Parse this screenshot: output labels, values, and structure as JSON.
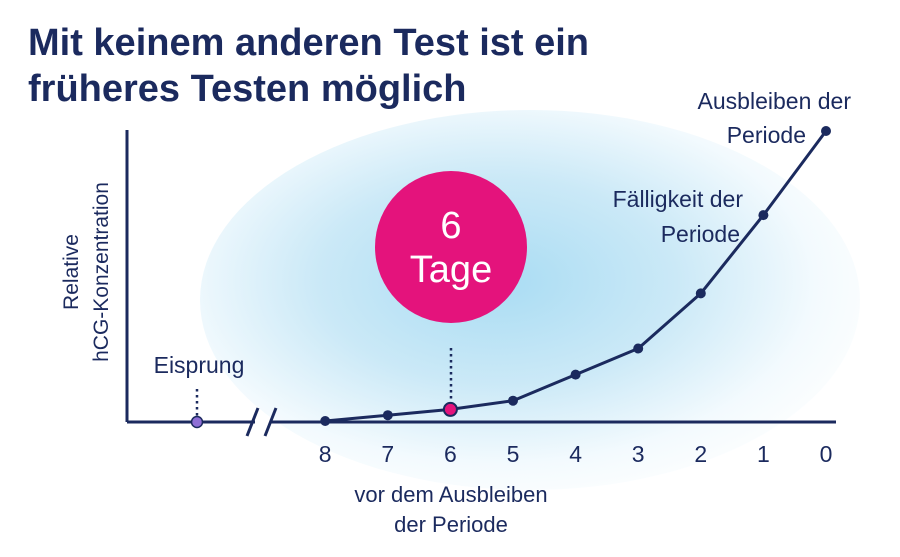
{
  "title_lines": [
    "Mit keinem anderen Test ist ein",
    "früheres Testen möglich"
  ],
  "chart_data": {
    "type": "line",
    "ylabel_lines": [
      "Relative",
      "hCG-Konzentration"
    ],
    "xlabel_lines": [
      "vor dem Ausbleiben",
      "der Periode"
    ],
    "x_ticks": [
      "8",
      "7",
      "6",
      "5",
      "4",
      "3",
      "2",
      "1",
      "0"
    ],
    "x": [
      8,
      7,
      6,
      5,
      4,
      3,
      2,
      1,
      0
    ],
    "y": [
      0,
      0.02,
      0.04,
      0.07,
      0.16,
      0.25,
      0.44,
      0.71,
      1.0
    ],
    "ylim": [
      0,
      1
    ],
    "x_axis_break": true,
    "highlight": {
      "x": 6,
      "badge_lines": [
        "6",
        "Tage"
      ],
      "color": "#e4137c"
    },
    "annotations": [
      {
        "x": 1,
        "lines": [
          "Fälligkeit der",
          "Periode"
        ]
      },
      {
        "x": 0,
        "lines": [
          "Ausbleiben der",
          "Periode"
        ]
      }
    ],
    "ovulation": {
      "lines": [
        "Eisprung"
      ],
      "color": "#7a5cc4"
    }
  },
  "colors": {
    "navy": "#1b2a5e",
    "accent": "#e4137c",
    "ovulation": "#8f6fd6"
  }
}
